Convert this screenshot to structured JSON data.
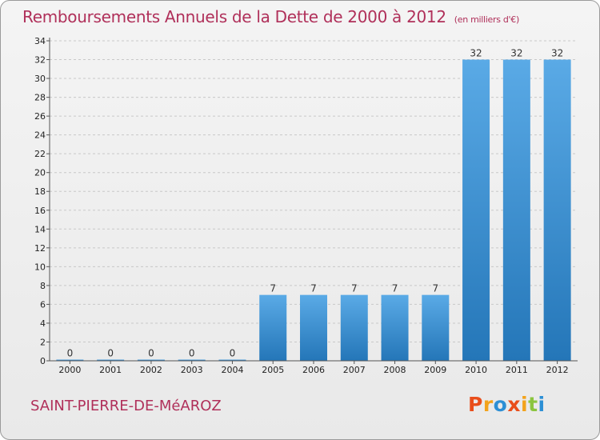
{
  "header": {
    "title": "Remboursements Annuels de la Dette de 2000 à 2012",
    "subtitle": "(en milliers d'€)"
  },
  "footer": {
    "commune": "SAINT-PIERRE-DE-MéAROZ",
    "logo_text": "Proxiti",
    "logo_colors": [
      "#e94e1b",
      "#f3a31b",
      "#2d8fd5",
      "#e94e1b",
      "#f3a31b",
      "#8bc53f",
      "#2d8fd5"
    ]
  },
  "chart_data": {
    "type": "bar",
    "title": "Remboursements Annuels de la Dette de 2000 à 2012",
    "categories": [
      "2000",
      "2001",
      "2002",
      "2003",
      "2004",
      "2005",
      "2006",
      "2007",
      "2008",
      "2009",
      "2010",
      "2011",
      "2012"
    ],
    "values": [
      0,
      0,
      0,
      0,
      0,
      7,
      7,
      7,
      7,
      7,
      32,
      32,
      32
    ],
    "value_labels": [
      "0",
      "0",
      "0",
      "0",
      "0",
      "7",
      "7",
      "7",
      "7",
      "7",
      "32",
      "32",
      "32"
    ],
    "ylim": [
      0,
      34
    ],
    "yticks": [
      0,
      2,
      4,
      6,
      8,
      10,
      12,
      14,
      16,
      18,
      20,
      22,
      24,
      26,
      28,
      30,
      32,
      34
    ],
    "grid": "horizontal dashed",
    "bar_color_top": "#5aaae6",
    "bar_color_bottom": "#2476b8"
  }
}
